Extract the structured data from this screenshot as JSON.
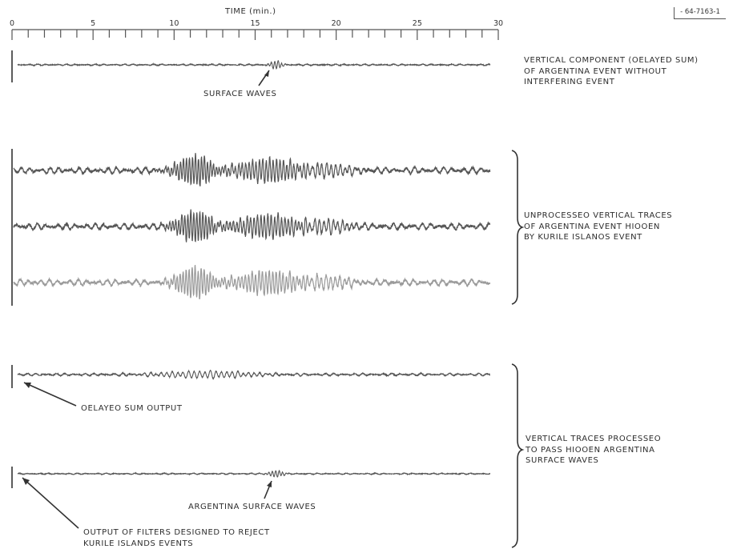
{
  "figure_number": "- 64-7163-1",
  "time_axis": {
    "title": "TIME (min.)",
    "range": [
      0,
      30
    ],
    "ticks": [
      "0",
      "5",
      "10",
      "15",
      "20",
      "25",
      "30"
    ]
  },
  "captions": {
    "top_right": [
      "VERTICAL COMPONENT (OELAYED SUM)",
      "OF ARGENTINA EVENT WITHOUT",
      "INTERFERING EVENT"
    ],
    "middle_right": [
      "UNPROCESSEO VERTICAL TRACES",
      "OF ARGENTINA EVENT HIOOEN",
      "BY KURILE ISLANOS EVENT"
    ],
    "bottom_right": [
      "VERTICAL TRACES PROCESSEO",
      "TO PASS HIOOEN ARGENTINA",
      "SURFACE WAVES"
    ]
  },
  "annotations": {
    "surface_waves": "SURFACE WAVES",
    "delayed_sum_output": "OELAYEO SUM OUTPUT",
    "argentina_surface_waves": "ARGENTINA SURFACE WAVES",
    "filter_output": [
      "OUTPUT OF FILTERS DESIGNED TO REJECT",
      "KURILE ISLANDS EVENTS"
    ]
  },
  "colors": {
    "trace_dark": "#555555",
    "trace_light": "#9a9a9a",
    "ink": "#2d2d2d"
  }
}
